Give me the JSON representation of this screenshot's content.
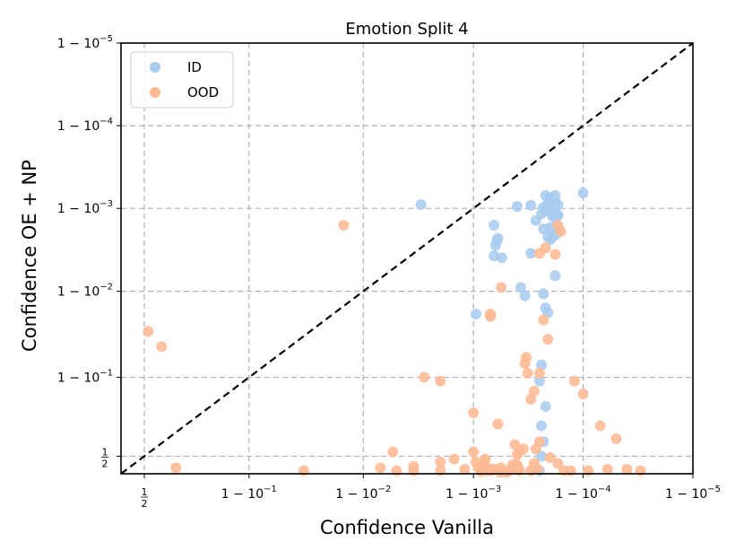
{
  "chart_data": {
    "type": "scatter",
    "title": "Emotion Split 4",
    "xlabel": "Confidence Vanilla",
    "ylabel": "Confidence OE + NP",
    "scale": "logit (1 - 10^-k)",
    "xlim": [
      0.38,
      0.99999
    ],
    "ylim": [
      0.38,
      0.99999
    ],
    "x_ticks": [
      {
        "value": 0.5,
        "label": "1/2"
      },
      {
        "value": 0.9,
        "label": "1 − 10^−1"
      },
      {
        "value": 0.99,
        "label": "1 − 10^−2"
      },
      {
        "value": 0.999,
        "label": "1 − 10^−3"
      },
      {
        "value": 0.9999,
        "label": "1 − 10^−4"
      },
      {
        "value": 0.99999,
        "label": "1 − 10^−5"
      }
    ],
    "y_ticks": [
      {
        "value": 0.5,
        "label": "1/2"
      },
      {
        "value": 0.9,
        "label": "1 − 10^−1"
      },
      {
        "value": 0.99,
        "label": "1 − 10^−2"
      },
      {
        "value": 0.999,
        "label": "1 − 10^−3"
      },
      {
        "value": 0.9999,
        "label": "1 − 10^−4"
      },
      {
        "value": 0.99999,
        "label": "1 − 10^−5"
      }
    ],
    "grid": true,
    "diagonal": "y = x (dashed black)",
    "legend": {
      "position": "top-left",
      "entries": [
        "ID",
        "OOD"
      ]
    },
    "series": [
      {
        "name": "ID",
        "color": "#a9cbef",
        "points": [
          [
            0.9997,
            0.99908
          ],
          [
            0.9999,
            0.99935
          ],
          [
            0.99978,
            0.9993
          ],
          [
            0.9998,
            0.99925
          ],
          [
            0.99982,
            0.99917
          ],
          [
            0.99983,
            0.9991
          ],
          [
            0.99981,
            0.99893
          ],
          [
            0.99982,
            0.99883
          ],
          [
            0.99983,
            0.99878
          ],
          [
            0.99981,
            0.99875
          ],
          [
            0.99982,
            0.9987
          ],
          [
            0.99983,
            0.99835
          ],
          [
            0.9998,
            0.9983
          ],
          [
            0.99983,
            0.9981
          ],
          [
            0.99982,
            0.9979
          ],
          [
            0.99981,
            0.9978
          ],
          [
            0.9998,
            0.9976
          ],
          [
            0.99982,
            0.9993
          ],
          [
            0.99981,
            0.99918
          ],
          [
            0.99979,
            0.99912
          ],
          [
            0.99977,
            0.99903
          ],
          [
            0.99978,
            0.99893
          ],
          [
            0.99976,
            0.99883
          ],
          [
            0.99973,
            0.9986
          ],
          [
            0.99977,
            0.99823
          ],
          [
            0.99979,
            0.9978
          ],
          [
            0.9996,
            0.99905
          ],
          [
            0.9994,
            0.9977
          ],
          [
            0.99939,
            0.99755
          ],
          [
            0.99937,
            0.9972
          ],
          [
            0.99935,
            0.99625
          ],
          [
            0.99945,
            0.99605
          ],
          [
            0.99905,
            0.9813
          ],
          [
            0.99983,
            0.9988
          ],
          [
            0.99983,
            0.9982
          ],
          [
            0.99982,
            0.9935
          ],
          [
            0.99977,
            0.9893
          ],
          [
            0.99978,
            0.9842
          ],
          [
            0.99979,
            0.982
          ],
          [
            0.99963,
            0.991
          ],
          [
            0.99966,
            0.9887
          ],
          [
            0.99976,
            0.927
          ],
          [
            0.99975,
            0.89
          ],
          [
            0.99978,
            0.8
          ],
          [
            0.99976,
            0.7
          ],
          [
            0.99977,
            0.6
          ],
          [
            0.99976,
            0.5
          ],
          [
            0.99975,
            0.4
          ],
          [
            0.9997,
            0.9965
          ],
          [
            0.99935,
            0.9984
          ],
          [
            0.997,
            0.9991
          ]
        ]
      },
      {
        "name": "OOD",
        "color": "#ffba93",
        "points": [
          [
            0.52,
            0.97
          ],
          [
            0.59,
            0.955
          ],
          [
            0.66,
            0.42
          ],
          [
            0.985,
            0.9984
          ],
          [
            0.966,
            0.4
          ],
          [
            0.9946,
            0.53
          ],
          [
            0.998,
            0.4
          ],
          [
            0.9988,
            0.41
          ],
          [
            0.999,
            0.77
          ],
          [
            0.9992,
            0.45
          ],
          [
            0.9995,
            0.39
          ],
          [
            0.9996,
            0.44
          ],
          [
            0.9997,
            0.4
          ],
          [
            0.9993,
            0.9813
          ],
          [
            0.998,
            0.89
          ],
          [
            0.99958,
            0.58
          ],
          [
            0.99962,
            0.53
          ],
          [
            0.99966,
            0.93
          ],
          [
            0.99973,
            0.55
          ],
          [
            0.9998,
            0.49
          ],
          [
            0.99985,
            0.4
          ],
          [
            0.99983,
            0.45
          ],
          [
            0.99988,
            0.89
          ],
          [
            0.9999,
            0.85
          ],
          [
            0.99993,
            0.7
          ],
          [
            0.99995,
            0.62
          ],
          [
            0.99987,
            0.4
          ],
          [
            0.99991,
            0.4
          ],
          [
            0.99994,
            0.41
          ],
          [
            0.99996,
            0.41
          ],
          [
            0.99997,
            0.4
          ],
          [
            0.99978,
            0.997
          ],
          [
            0.99975,
            0.9965
          ],
          [
            0.99967,
            0.94
          ],
          [
            0.99968,
            0.91
          ],
          [
            0.99975,
            0.6
          ],
          [
            0.99972,
            0.45
          ],
          [
            0.99974,
            0.41
          ],
          [
            0.99961,
            0.42
          ],
          [
            0.99962,
            0.4
          ],
          [
            0.99953,
            0.4
          ],
          [
            0.99955,
            0.41
          ],
          [
            0.99943,
            0.39
          ],
          [
            0.99944,
            0.42
          ],
          [
            0.99922,
            0.48
          ],
          [
            0.99921,
            0.44
          ],
          [
            0.99931,
            0.4
          ],
          [
            0.99932,
            0.41
          ],
          [
            0.99905,
            0.46
          ],
          [
            0.999,
            0.53
          ],
          [
            0.9991,
            0.42
          ],
          [
            0.9993,
            0.98
          ],
          [
            0.99944,
            0.991
          ],
          [
            0.99983,
            0.9984
          ],
          [
            0.99984,
            0.9981
          ],
          [
            0.99982,
            0.9964
          ],
          [
            0.99977,
            0.978
          ],
          [
            0.99979,
            0.963
          ],
          [
            0.99975,
            0.91
          ],
          [
            0.99972,
            0.86
          ],
          [
            0.9997,
            0.83
          ],
          [
            0.99965,
            0.55
          ],
          [
            0.9996,
            0.51
          ],
          [
            0.99956,
            0.44
          ],
          [
            0.9994,
            0.71
          ],
          [
            0.99935,
            0.41
          ],
          [
            0.99925,
            0.4
          ],
          [
            0.99915,
            0.395
          ],
          [
            0.9985,
            0.48
          ],
          [
            0.998,
            0.46
          ],
          [
            0.9965,
            0.43
          ],
          [
            0.995,
            0.4
          ],
          [
            0.993,
            0.42
          ],
          [
            0.9972,
            0.9
          ],
          [
            0.9965,
            0.4
          ]
        ]
      }
    ]
  }
}
